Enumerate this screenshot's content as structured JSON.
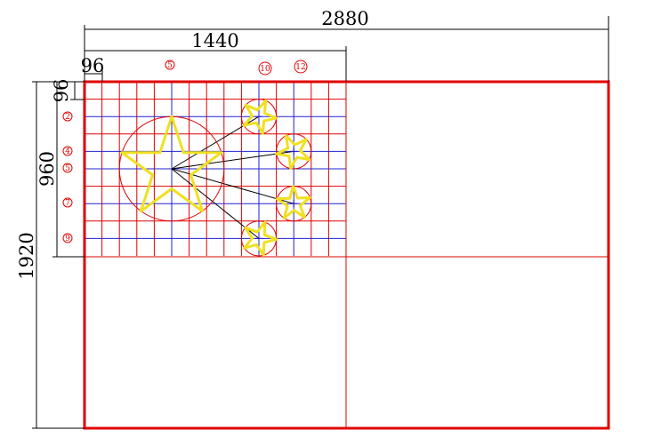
{
  "dimensions": {
    "full_width": "2880",
    "half_width": "1440",
    "unit_width": "96",
    "unit_height": "96",
    "half_height": "960",
    "full_height": "1920"
  },
  "column_markers": [
    "5",
    "10",
    "12"
  ],
  "row_markers": [
    "2",
    "4",
    "5",
    "7",
    "9"
  ],
  "colors": {
    "flag_border": "#e00000",
    "grid_line": "#e00000",
    "axis_line": "#2020d0",
    "star": "#f0e020",
    "dimension_line": "#000000"
  }
}
